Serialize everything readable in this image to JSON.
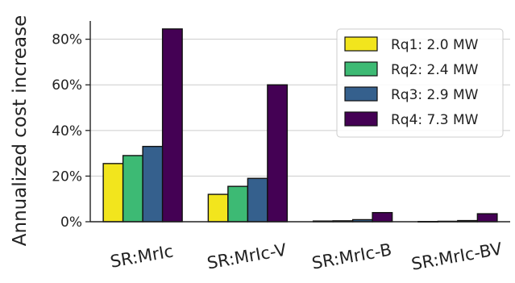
{
  "chart_data": {
    "type": "bar",
    "title": "",
    "xlabel": "",
    "ylabel": "Annualized cost increase",
    "ylim": [
      0,
      88
    ],
    "y_ticks": [
      0,
      20,
      40,
      60,
      80
    ],
    "y_tick_labels": [
      "0%",
      "20%",
      "40%",
      "60%",
      "80%"
    ],
    "y_unit": "%",
    "grid": "horizontal",
    "legend_position": "top-right",
    "categories": [
      "SR:MrIc",
      "SR:MrIc-V",
      "SR:MrIc-B",
      "SR:MrIc-BV"
    ],
    "series": [
      {
        "name": "Rq1: 2.0 MW",
        "color": "#f2e51d",
        "values": [
          25.5,
          12.0,
          0.3,
          0.1
        ]
      },
      {
        "name": "Rq2: 2.4 MW",
        "color": "#3dba74",
        "values": [
          29.0,
          15.5,
          0.4,
          0.2
        ]
      },
      {
        "name": "Rq3: 2.9 MW",
        "color": "#35608d",
        "values": [
          33.0,
          19.0,
          0.9,
          0.5
        ]
      },
      {
        "name": "Rq4: 7.3 MW",
        "color": "#440154",
        "values": [
          84.5,
          60.0,
          4.0,
          3.5
        ]
      }
    ]
  }
}
